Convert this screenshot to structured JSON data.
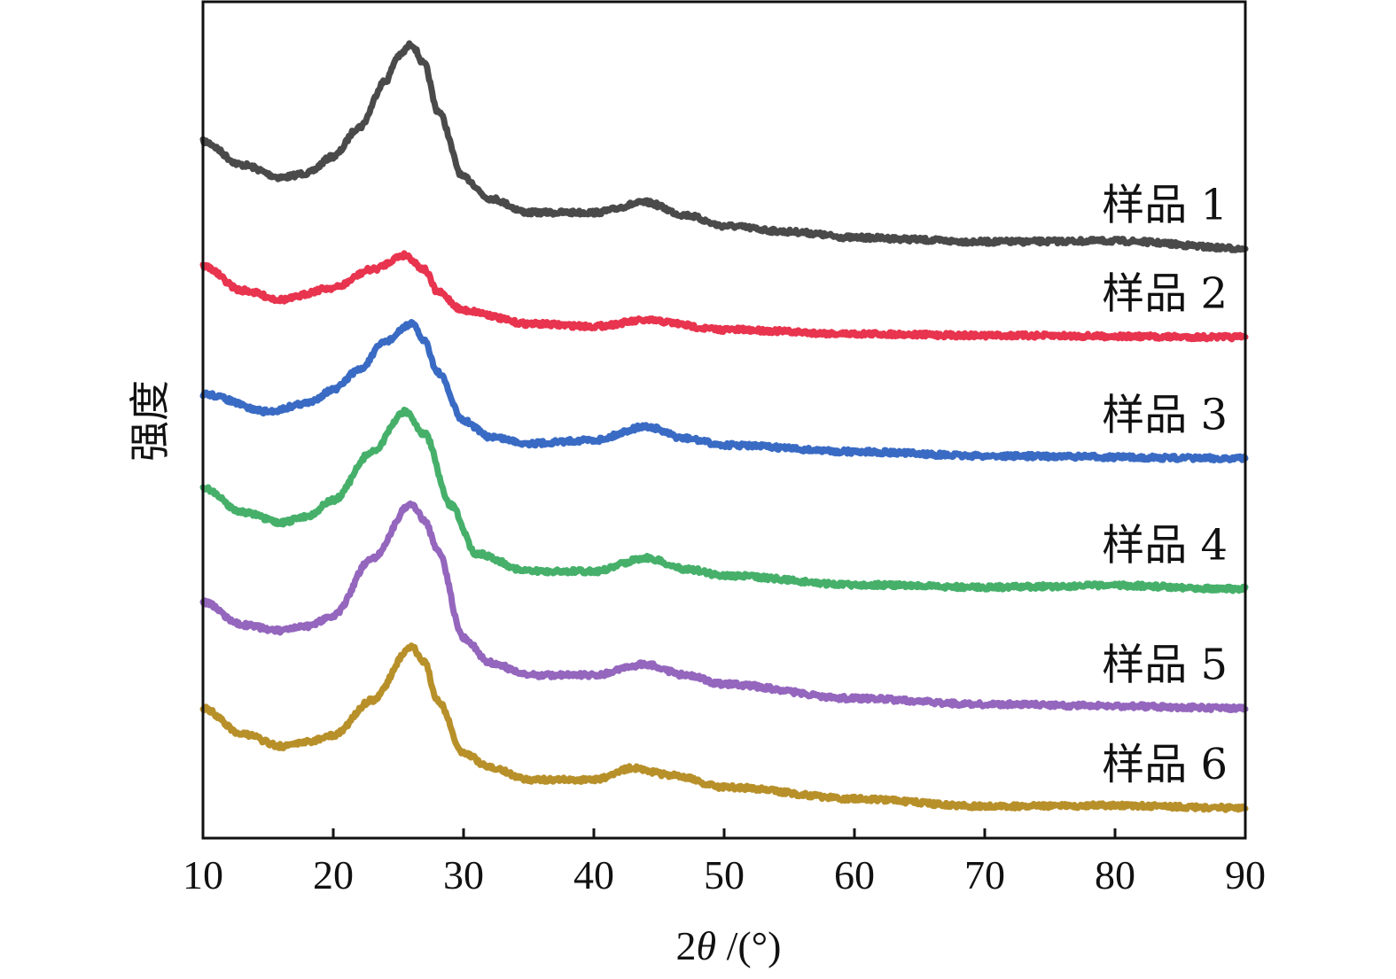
{
  "chart_data": {
    "type": "line",
    "title": "",
    "xlabel_prefix": "2",
    "xlabel_symbol": "θ",
    "xlabel_suffix": " /(°)",
    "ylabel": "强度",
    "xlim": [
      10,
      90
    ],
    "ylim": [
      0,
      100
    ],
    "xticks": [
      10,
      20,
      30,
      40,
      50,
      60,
      70,
      80,
      90
    ],
    "xtick_labels": [
      "10",
      "20",
      "30",
      "40",
      "50",
      "60",
      "70",
      "80",
      "90"
    ],
    "yticks_shown": false,
    "grid": false,
    "legend": "inline labels at right end of each curve",
    "series": [
      {
        "name": "样品 1",
        "color": "#4a4a4a",
        "x": [
          10,
          13,
          16,
          18,
          20,
          22,
          24,
          25,
          26,
          27,
          28,
          30,
          32,
          35,
          40,
          44,
          47,
          50,
          55,
          60,
          70,
          80,
          90
        ],
        "y": [
          83.3,
          80.5,
          79,
          79.5,
          81.5,
          85,
          90.5,
          93.5,
          94.9,
          92.5,
          87,
          79,
          76.5,
          74.8,
          74.8,
          76,
          74.5,
          73.2,
          72.5,
          71.8,
          71.3,
          71.4,
          70.5
        ]
      },
      {
        "name": "样品 2",
        "color": "#e8344e",
        "x": [
          10,
          13,
          16,
          20,
          23,
          25.5,
          27,
          28,
          30,
          35,
          40,
          44,
          50,
          60,
          70,
          90
        ],
        "y": [
          68.4,
          65.5,
          64.4,
          65.8,
          68,
          69.7,
          68,
          65.3,
          63.1,
          61.5,
          61.2,
          61.9,
          60.8,
          60.3,
          60.1,
          59.9
        ]
      },
      {
        "name": "样品 3",
        "color": "#3a6bc4",
        "x": [
          10,
          15,
          18,
          20,
          22,
          24,
          26,
          27,
          28,
          30,
          32,
          35,
          40,
          44,
          47,
          50,
          60,
          70,
          90
        ],
        "y": [
          53.1,
          51,
          52,
          53.6,
          56,
          59.4,
          61.5,
          59.5,
          55.7,
          49.9,
          48,
          47.2,
          47.6,
          49.2,
          47.8,
          47,
          46.2,
          45.7,
          45.4
        ]
      },
      {
        "name": "样品 4",
        "color": "#46b06a",
        "x": [
          10,
          13,
          16,
          18,
          20,
          23,
          25.5,
          27,
          29,
          31,
          35,
          40,
          44,
          47,
          50,
          60,
          70,
          80,
          90
        ],
        "y": [
          41.9,
          39,
          37.7,
          38.5,
          40.4,
          46.2,
          51,
          48.3,
          39.8,
          34,
          31.9,
          31.9,
          33.5,
          32.2,
          31.4,
          30.3,
          30,
          30.2,
          29.8
        ]
      },
      {
        "name": "样品 5",
        "color": "#9466bd",
        "x": [
          10,
          13,
          16,
          18,
          20,
          23,
          26,
          27,
          28,
          30,
          32,
          35,
          40,
          44,
          47,
          50,
          60,
          70,
          80,
          90
        ],
        "y": [
          28.2,
          25.5,
          24.8,
          25.3,
          26.6,
          33.5,
          40,
          38,
          34.5,
          23.9,
          21,
          19.5,
          19.5,
          20.8,
          19.5,
          18.4,
          16.7,
          16,
          15.8,
          15.5
        ]
      },
      {
        "name": "样品 6",
        "color": "#b8902a",
        "x": [
          10,
          13,
          16,
          18,
          20,
          23,
          26,
          27,
          28,
          30,
          32,
          35,
          40,
          43,
          46,
          50,
          60,
          70,
          80,
          90
        ],
        "y": [
          15.5,
          12.5,
          11,
          11.5,
          12.3,
          16.5,
          22.9,
          21,
          16.5,
          10.2,
          8.5,
          7,
          7,
          8.4,
          7.5,
          6.1,
          4.7,
          3.8,
          3.9,
          3.6
        ]
      }
    ]
  }
}
